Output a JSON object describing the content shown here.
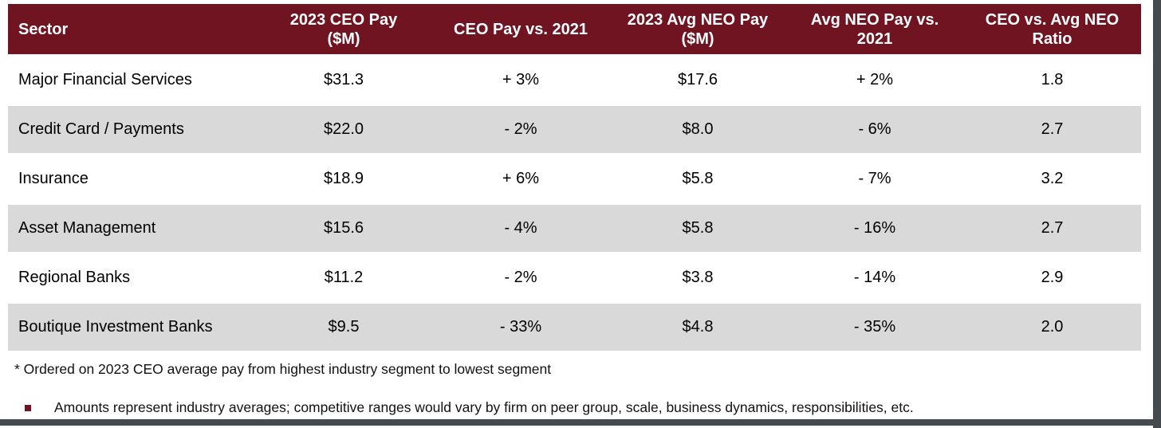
{
  "colors": {
    "header_bg": "#711422",
    "header_text": "#ffffff",
    "row_bg": "#ffffff",
    "row_alt_bg": "#d9d9d9",
    "body_text": "#000000",
    "bullet": "#711422",
    "edge_bars": "#454a4e"
  },
  "table": {
    "columns": [
      {
        "label": "Sector",
        "lines": [
          "Sector"
        ]
      },
      {
        "label": "2023 CEO Pay ($M)",
        "lines": [
          "2023 CEO Pay",
          "($M)"
        ]
      },
      {
        "label": "CEO Pay vs. 2021",
        "lines": [
          "CEO Pay vs. 2021"
        ]
      },
      {
        "label": "2023 Avg NEO Pay ($M)",
        "lines": [
          "2023 Avg NEO Pay",
          "($M)"
        ]
      },
      {
        "label": "Avg NEO Pay vs. 2021",
        "lines": [
          "Avg NEO Pay vs.",
          "2021"
        ]
      },
      {
        "label": "CEO vs. Avg NEO Ratio",
        "lines": [
          "CEO vs. Avg NEO",
          "Ratio"
        ]
      }
    ],
    "rows": [
      [
        "Major Financial Services",
        "$31.3",
        "+ 3%",
        "$17.6",
        "+ 2%",
        "1.8"
      ],
      [
        "Credit Card / Payments",
        "$22.0",
        "- 2%",
        "$8.0",
        "- 6%",
        "2.7"
      ],
      [
        "Insurance",
        "$18.9",
        "+ 6%",
        "$5.8",
        "- 7%",
        "3.2"
      ],
      [
        "Asset Management",
        "$15.6",
        "- 4%",
        "$5.8",
        "- 16%",
        "2.7"
      ],
      [
        "Regional Banks",
        "$11.2",
        "- 2%",
        "$3.8",
        "- 14%",
        "2.9"
      ],
      [
        "Boutique Investment Banks",
        "$9.5",
        "- 33%",
        "$4.8",
        "- 35%",
        "2.0"
      ]
    ]
  },
  "footnote": "* Ordered on 2023 CEO average pay from highest industry segment to lowest segment",
  "bullet_note": "Amounts represent industry averages; competitive ranges would vary by firm on peer group, scale, business dynamics, responsibilities, etc."
}
